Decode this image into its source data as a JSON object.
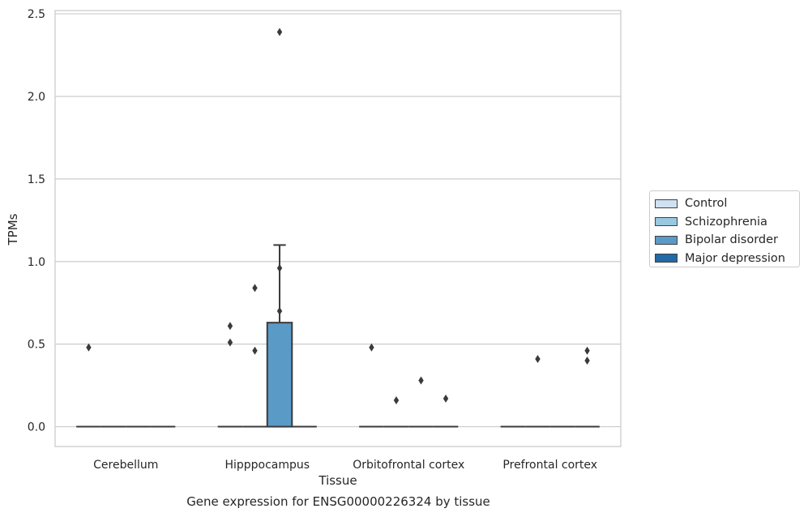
{
  "caption": "Gene expression for ENSG00000226324 by tissue",
  "chart_data": {
    "type": "box",
    "xlabel": "Tissue",
    "ylabel": "TPMs",
    "ylim": [
      -0.12,
      2.52
    ],
    "yticks": [
      0.0,
      0.5,
      1.0,
      1.5,
      2.0,
      2.5
    ],
    "ytick_labels": [
      "0.0",
      "0.5",
      "1.0",
      "1.5",
      "2.0",
      "2.5"
    ],
    "grid": true,
    "legend_position": "right",
    "categories": [
      "Cerebellum",
      "Hipppocampus",
      "Orbitofrontal cortex",
      "Prefrontal cortex"
    ],
    "series": [
      {
        "name": "Control",
        "color": "#cfe1f2",
        "boxes": [
          {
            "q1": 0,
            "median": 0,
            "q3": 0,
            "whisker_low": 0,
            "whisker_high": 0,
            "outliers": [
              0.48
            ]
          },
          {
            "q1": 0,
            "median": 0,
            "q3": 0,
            "whisker_low": 0,
            "whisker_high": 0,
            "outliers": [
              0.61,
              0.51
            ]
          },
          {
            "q1": 0,
            "median": 0,
            "q3": 0,
            "whisker_low": 0,
            "whisker_high": 0,
            "outliers": [
              0.48
            ]
          },
          {
            "q1": 0,
            "median": 0,
            "q3": 0,
            "whisker_low": 0,
            "whisker_high": 0,
            "outliers": []
          }
        ]
      },
      {
        "name": "Schizophrenia",
        "color": "#9ac8e0",
        "boxes": [
          {
            "q1": 0,
            "median": 0,
            "q3": 0,
            "whisker_low": 0,
            "whisker_high": 0,
            "outliers": []
          },
          {
            "q1": 0,
            "median": 0,
            "q3": 0,
            "whisker_low": 0,
            "whisker_high": 0,
            "outliers": [
              0.84,
              0.46
            ]
          },
          {
            "q1": 0,
            "median": 0,
            "q3": 0,
            "whisker_low": 0,
            "whisker_high": 0,
            "outliers": [
              0.16
            ]
          },
          {
            "q1": 0,
            "median": 0,
            "q3": 0,
            "whisker_low": 0,
            "whisker_high": 0,
            "outliers": [
              0.41
            ]
          }
        ]
      },
      {
        "name": "Bipolar disorder",
        "color": "#5a9ac6",
        "boxes": [
          {
            "q1": 0,
            "median": 0,
            "q3": 0,
            "whisker_low": 0,
            "whisker_high": 0,
            "outliers": []
          },
          {
            "q1": 0,
            "median": 0,
            "q3": 0.63,
            "whisker_low": 0,
            "whisker_high": 1.1,
            "outliers": [
              2.39,
              0.96,
              0.7
            ]
          },
          {
            "q1": 0,
            "median": 0,
            "q3": 0,
            "whisker_low": 0,
            "whisker_high": 0,
            "outliers": [
              0.28
            ]
          },
          {
            "q1": 0,
            "median": 0,
            "q3": 0,
            "whisker_low": 0,
            "whisker_high": 0,
            "outliers": []
          }
        ]
      },
      {
        "name": "Major depression",
        "color": "#2269a8",
        "boxes": [
          {
            "q1": 0,
            "median": 0,
            "q3": 0,
            "whisker_low": 0,
            "whisker_high": 0,
            "outliers": []
          },
          {
            "q1": 0,
            "median": 0,
            "q3": 0,
            "whisker_low": 0,
            "whisker_high": 0,
            "outliers": []
          },
          {
            "q1": 0,
            "median": 0,
            "q3": 0,
            "whisker_low": 0,
            "whisker_high": 0,
            "outliers": [
              0.17
            ]
          },
          {
            "q1": 0,
            "median": 0,
            "q3": 0,
            "whisker_low": 0,
            "whisker_high": 0,
            "outliers": [
              0.46,
              0.4
            ]
          }
        ]
      }
    ]
  }
}
